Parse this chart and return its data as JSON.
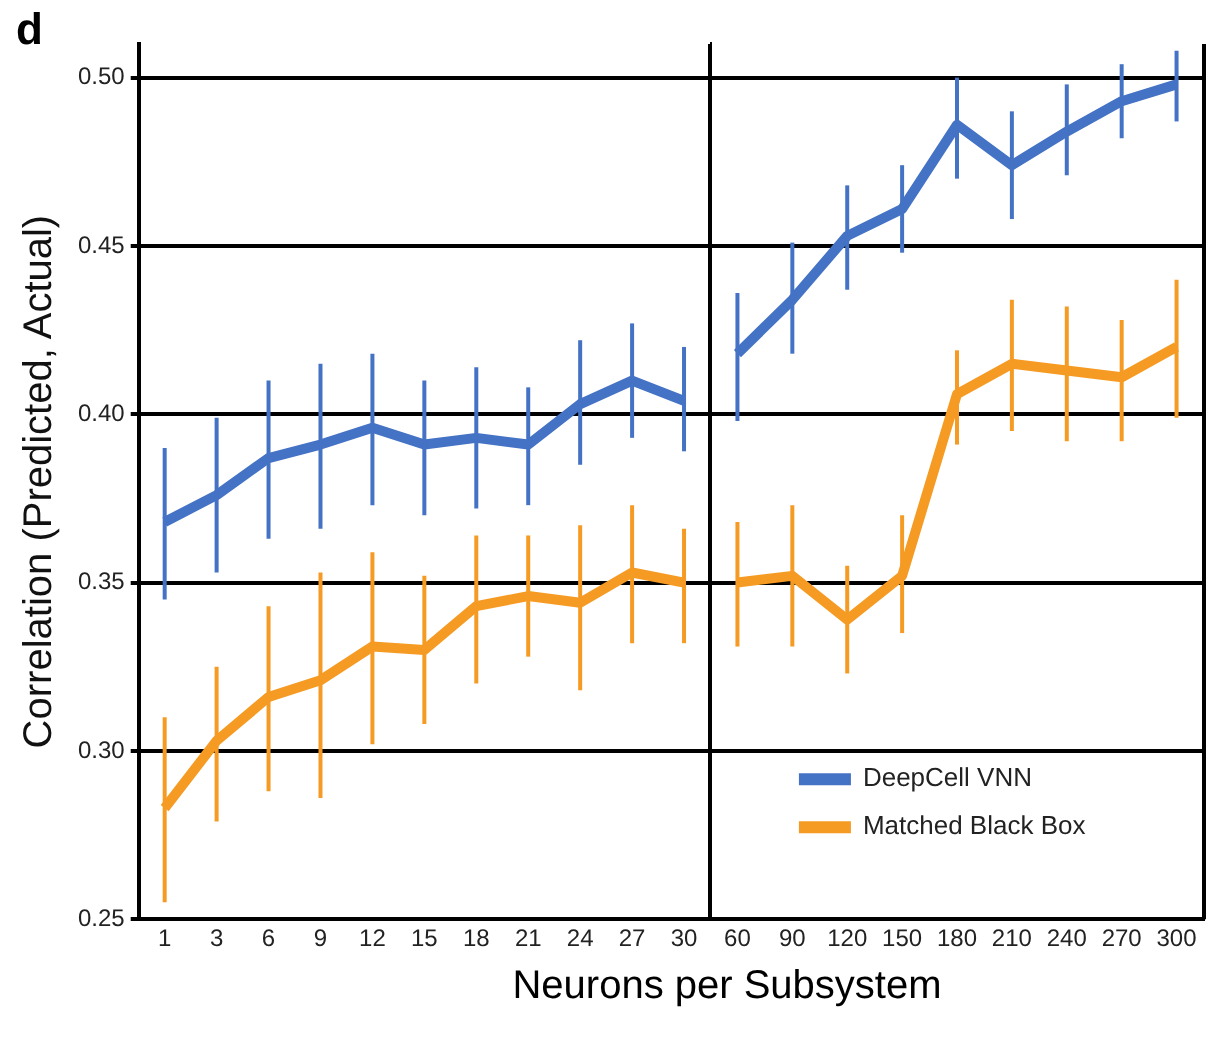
{
  "chart_data": [
    {
      "type": "line",
      "title": "d",
      "xlabel": "Neurons per Subsystem",
      "ylabel": "Correlation (Predicted, Actual)",
      "categories": [
        "1",
        "3",
        "6",
        "9",
        "12",
        "15",
        "18",
        "21",
        "24",
        "27",
        "30"
      ],
      "ylim": [
        0.25,
        0.51
      ],
      "yticks": [
        0.25,
        {
          "value": 0.3,
          "label": "0.30"
        },
        0.35,
        {
          "value": 0.4,
          "label": "0.40"
        },
        0.45,
        {
          "value": 0.5,
          "label": "0.50"
        }
      ],
      "grid": "y",
      "marker": "none",
      "line_style": "solid",
      "series": [
        {
          "color": "#4472c4",
          "values": [
            0.368,
            0.376,
            0.387,
            0.391,
            0.396,
            0.391,
            0.393,
            0.391,
            0.403,
            0.41,
            0.404
          ],
          "errors": [
            [
              0.345,
              0.39
            ],
            [
              0.353,
              0.399
            ],
            [
              0.363,
              0.41
            ],
            [
              0.366,
              0.415
            ],
            [
              0.373,
              0.418
            ],
            [
              0.37,
              0.41
            ],
            [
              0.372,
              0.414
            ],
            [
              0.373,
              0.408
            ],
            [
              0.385,
              0.422
            ],
            [
              0.393,
              0.427
            ],
            [
              0.389,
              0.42
            ]
          ]
        },
        {
          "color": "#f59b23",
          "values": [
            0.283,
            0.303,
            0.316,
            0.321,
            0.331,
            0.33,
            0.343,
            0.346,
            0.344,
            0.353,
            0.35
          ],
          "errors": [
            [
              0.255,
              0.31
            ],
            [
              0.279,
              0.325
            ],
            [
              0.288,
              0.343
            ],
            [
              0.286,
              0.353
            ],
            [
              0.302,
              0.359
            ],
            [
              0.308,
              0.352
            ],
            [
              0.32,
              0.364
            ],
            [
              0.328,
              0.364
            ],
            [
              0.318,
              0.367
            ],
            [
              0.332,
              0.373
            ],
            [
              0.332,
              0.366
            ]
          ]
        }
      ]
    },
    {
      "type": "line",
      "categories": [
        "60",
        "90",
        "120",
        "150",
        "180",
        "210",
        "240",
        "270",
        "300"
      ],
      "ylim": [
        0.25,
        0.51
      ],
      "yticks": [
        0.25,
        0.3,
        0.35,
        0.4,
        0.45,
        0.5
      ],
      "grid": "y",
      "marker": "none",
      "line_style": "solid",
      "tick_labels": "x",
      "legend": "bottom",
      "series": [
        {
          "name": "DeepCell VNN",
          "color": "#4472c4",
          "values": [
            0.418,
            0.434,
            0.453,
            0.461,
            0.486,
            0.474,
            0.484,
            0.493,
            0.498
          ],
          "errors": [
            [
              0.398,
              0.436
            ],
            [
              0.418,
              0.451
            ],
            [
              0.437,
              0.468
            ],
            [
              0.448,
              0.474
            ],
            [
              0.47,
              0.5
            ],
            [
              0.458,
              0.49
            ],
            [
              0.471,
              0.498
            ],
            [
              0.482,
              0.504
            ],
            [
              0.487,
              0.508
            ]
          ]
        },
        {
          "name": "Matched Black Box",
          "color": "#f59b23",
          "values": [
            0.35,
            0.352,
            0.339,
            0.352,
            0.406,
            0.415,
            0.413,
            0.411,
            0.42
          ],
          "errors": [
            [
              0.331,
              0.368
            ],
            [
              0.331,
              0.373
            ],
            [
              0.323,
              0.355
            ],
            [
              0.335,
              0.37
            ],
            [
              0.391,
              0.419
            ],
            [
              0.395,
              0.434
            ],
            [
              0.392,
              0.432
            ],
            [
              0.392,
              0.428
            ],
            [
              0.399,
              0.44
            ]
          ]
        }
      ]
    }
  ]
}
